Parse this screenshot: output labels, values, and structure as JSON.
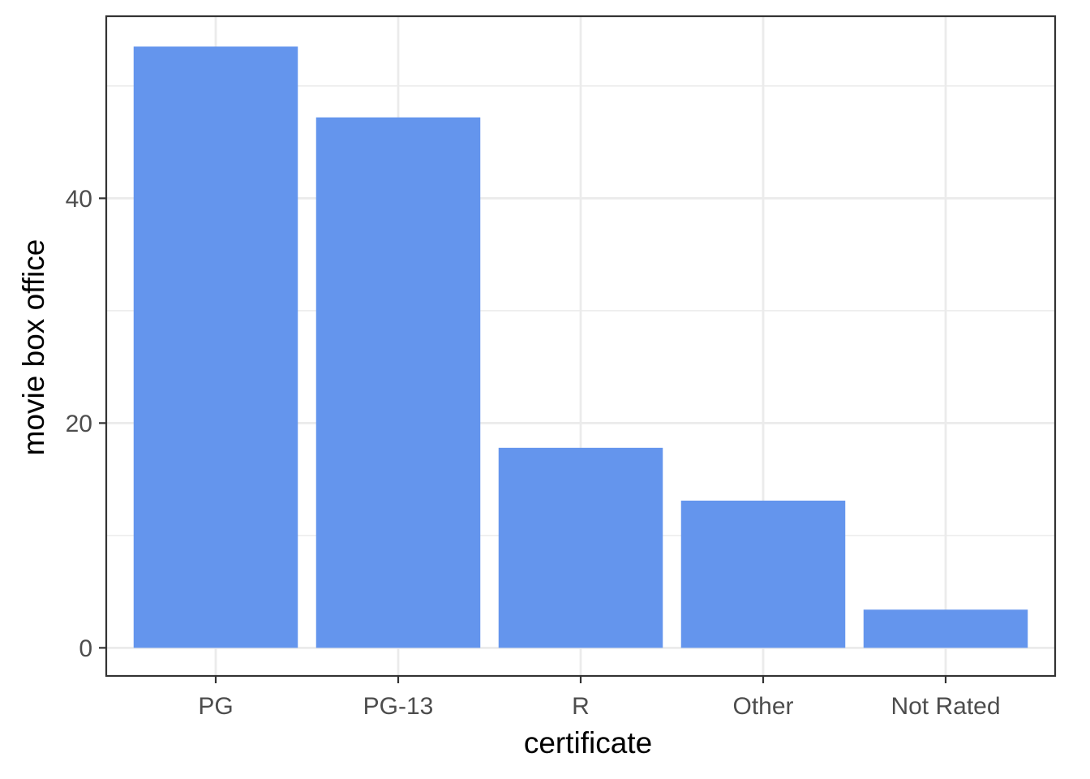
{
  "chart_data": {
    "type": "bar",
    "title": "",
    "xlabel": "certificate",
    "ylabel": "movie box office",
    "categories": [
      "PG",
      "PG-13",
      "R",
      "Other",
      "Not Rated"
    ],
    "values": [
      53.5,
      47.2,
      17.8,
      13.1,
      3.4
    ],
    "ylim": [
      -2.5,
      56.2
    ],
    "yticks": [
      0,
      20,
      40
    ],
    "ytick_labels": [
      "0",
      "20",
      "40"
    ],
    "grid": true,
    "legend": "none",
    "colors": {
      "bar": "#6495ED",
      "grid": "#EBEBEB",
      "panel_border": "#333333",
      "tick_text": "#4D4D4D",
      "title_text": "#000000"
    }
  }
}
